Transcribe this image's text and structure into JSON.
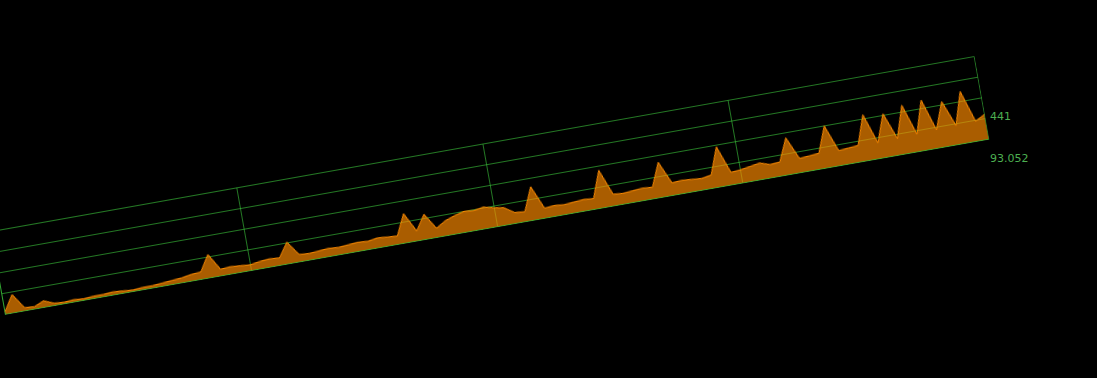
{
  "chart_data": {
    "type": "line",
    "x": [
      0,
      1,
      2,
      3,
      4,
      5,
      6,
      7,
      8,
      9,
      10,
      11,
      12,
      13,
      14,
      15,
      16,
      17,
      18,
      19,
      20,
      21,
      22,
      23,
      24,
      25,
      26,
      27,
      28,
      29,
      30,
      31,
      32,
      33,
      34,
      35,
      36,
      37,
      38,
      39,
      40,
      41,
      42,
      43,
      44,
      45,
      46,
      47,
      48,
      49,
      50,
      51,
      52,
      53,
      54,
      55,
      56,
      57,
      58,
      59,
      60,
      61,
      62,
      63,
      64,
      65,
      66,
      67,
      68,
      69,
      70,
      71,
      72,
      73,
      74,
      75,
      76,
      77,
      78,
      79,
      80,
      81,
      82,
      83,
      84,
      85,
      86,
      87,
      88,
      89,
      90,
      91,
      92,
      93,
      94,
      95,
      96,
      97,
      98,
      99,
      100
    ],
    "values": [
      3,
      22,
      4,
      3,
      8,
      3,
      2,
      3,
      2,
      3,
      3,
      4,
      3,
      2,
      3,
      3,
      4,
      5,
      6,
      8,
      9,
      28,
      8,
      9,
      8,
      7,
      9,
      10,
      9,
      26,
      9,
      8,
      9,
      10,
      9,
      10,
      11,
      10,
      12,
      11,
      10,
      35,
      12,
      30,
      11,
      18,
      22,
      25,
      24,
      26,
      23,
      21,
      13,
      12,
      40,
      12,
      13,
      12,
      13,
      14,
      13,
      45,
      14,
      13,
      14,
      15,
      14,
      42,
      15,
      16,
      15,
      14,
      16,
      48,
      15,
      16,
      18,
      20,
      16,
      17,
      44,
      17,
      18,
      19,
      50,
      18,
      19,
      20,
      55,
      19,
      52,
      20,
      58,
      21,
      60,
      22,
      54,
      23,
      62,
      24,
      30
    ],
    "color": "#ff8c00",
    "xlim": [
      0,
      100
    ],
    "xticks": [
      0,
      25,
      50,
      75,
      100
    ],
    "ylim": [
      0,
      100
    ],
    "yticks": [
      0,
      25,
      50,
      75,
      100
    ],
    "grid": true,
    "tick_labels": false,
    "annotations": [
      "441",
      "93.052"
    ]
  }
}
